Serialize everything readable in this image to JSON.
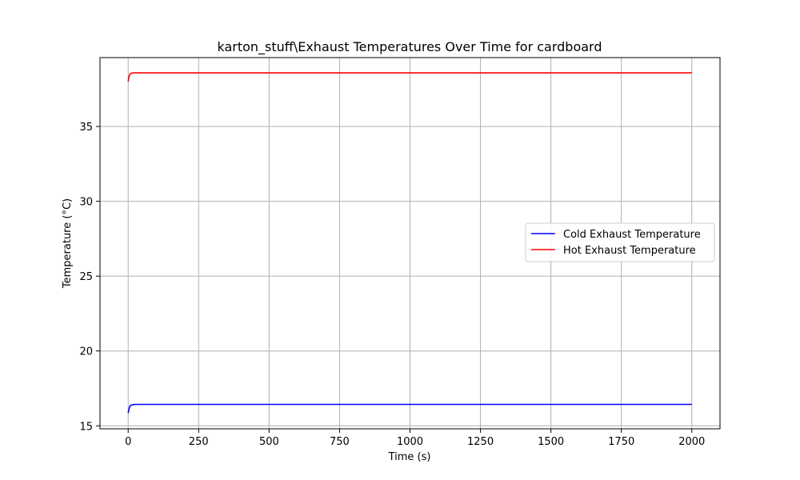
{
  "chart_data": {
    "type": "line",
    "title": "karton_stuff\\Exhaust Temperatures Over Time for cardboard",
    "xlabel": "Time (s)",
    "ylabel": "Temperature (°C)",
    "xlim": [
      -100,
      2100
    ],
    "ylim": [
      14.8,
      39.6
    ],
    "xticks": [
      0,
      250,
      500,
      750,
      1000,
      1250,
      1500,
      1750,
      2000
    ],
    "yticks": [
      15,
      20,
      25,
      30,
      35
    ],
    "grid": true,
    "legend_position": "center-right",
    "series": [
      {
        "name": "Cold Exhaust Temperature",
        "color": "#0000ff",
        "x": [
          0,
          2,
          4,
          6,
          8,
          10,
          15,
          20,
          30,
          50,
          100,
          500,
          1000,
          1500,
          2000
        ],
        "y": [
          15.85,
          16.05,
          16.2,
          16.3,
          16.35,
          16.38,
          16.41,
          16.42,
          16.43,
          16.43,
          16.43,
          16.43,
          16.43,
          16.43,
          16.43
        ]
      },
      {
        "name": "Hot Exhaust Temperature",
        "color": "#ff0000",
        "x": [
          0,
          2,
          4,
          6,
          8,
          10,
          15,
          20,
          30,
          50,
          100,
          500,
          1000,
          1500,
          2000
        ],
        "y": [
          38.0,
          38.25,
          38.4,
          38.48,
          38.52,
          38.55,
          38.57,
          38.58,
          38.58,
          38.58,
          38.58,
          38.58,
          38.58,
          38.58,
          38.58
        ]
      }
    ]
  }
}
